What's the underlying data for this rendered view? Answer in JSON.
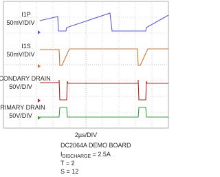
{
  "traces": [
    {
      "name": "I1P",
      "scale": "50mV/DIV"
    },
    {
      "name": "I1S",
      "scale": "50mV/DIV"
    },
    {
      "name": "SECONDARY DRAIN",
      "scale": "50V/DIV"
    },
    {
      "name": "PRIMARY DRAIN",
      "scale": "50V/DIV"
    }
  ],
  "timebase": "2µs/DIV",
  "caption": {
    "board": "DC2064A DEMO BOARD",
    "current_symbol": "I",
    "current_subscript": "DISCHARGE",
    "current_value": " = 2.5A",
    "t": "T = 2",
    "s": "S = 12"
  }
}
